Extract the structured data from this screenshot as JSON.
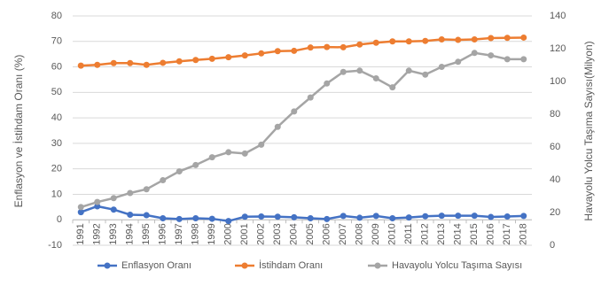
{
  "chart_data": {
    "type": "line",
    "categories": [
      "1991",
      "1992",
      "1993",
      "1994",
      "1995",
      "1996",
      "1997",
      "1998",
      "1999",
      "2000",
      "2001",
      "2002",
      "2003",
      "2004",
      "2005",
      "2006",
      "2007",
      "2008",
      "2009",
      "2010",
      "2011",
      "2012",
      "2013",
      "2014",
      "2015",
      "2016",
      "2017",
      "2018"
    ],
    "ylabel": "Enflasyon ve İstihdam Oranı (%)",
    "y2label": "Havayolu Yolcu Taşıma Sayısı(Milyon)",
    "ylim": [
      -10,
      80
    ],
    "yticks": [
      -10,
      0,
      10,
      20,
      30,
      40,
      50,
      60,
      70,
      80
    ],
    "y2lim": [
      0,
      140
    ],
    "y2ticks": [
      0,
      20,
      40,
      60,
      80,
      100,
      120,
      140
    ],
    "grid": true,
    "legend": "bottom",
    "series": [
      {
        "name": "Enflasyon Oranı",
        "color": "#4472c4",
        "values": [
          3,
          5.3,
          4,
          2,
          1.8,
          0.6,
          0.3,
          0.6,
          0.4,
          -0.5,
          1.2,
          1.3,
          1.2,
          1.0,
          0.6,
          0.3,
          1.5,
          0.8,
          1.5,
          0.6,
          0.9,
          1.4,
          1.6,
          1.6,
          1.6,
          1.1,
          1.3,
          1.5
        ]
      },
      {
        "name": "İstihdam Oranı",
        "color": "#ed7d31",
        "values": [
          60.5,
          60.8,
          61.5,
          61.5,
          60.8,
          61.6,
          62.2,
          62.7,
          63.2,
          63.8,
          64.5,
          65.3,
          66.2,
          66.3,
          67.6,
          67.8,
          67.7,
          68.8,
          69.5,
          70,
          70,
          70.2,
          70.8,
          70.6,
          70.8,
          71.3,
          71.4,
          71.5
        ]
      },
      {
        "name": "Havayolu Yolcu Taşıma Sayısı",
        "color": "#a5a5a5",
        "axis": "y2",
        "values": [
          23.3,
          26.4,
          28.8,
          31.9,
          34.2,
          39.7,
          45.1,
          49,
          53.7,
          56.8,
          56,
          61.4,
          72.3,
          81.7,
          90.2,
          98.8,
          105.8,
          106.6,
          101.9,
          96.4,
          106.6,
          104.2,
          108.9,
          112,
          117.4,
          115.9,
          113.6,
          113.6
        ]
      }
    ]
  }
}
